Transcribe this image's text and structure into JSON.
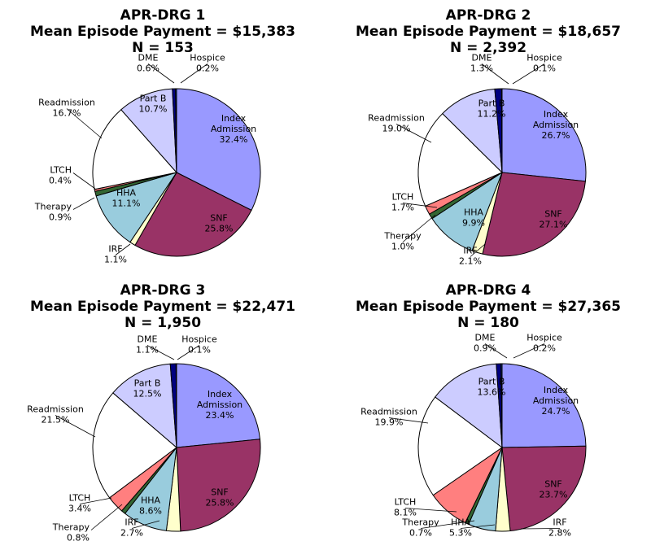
{
  "chart_data": [
    {
      "type": "pie",
      "title_lines": [
        "APR-DRG 1",
        "Mean Episode Payment = $15,383",
        "N = 153"
      ],
      "slices": [
        {
          "label": "Index\nAdmission",
          "pct_text": "32.4%",
          "value": 32.4,
          "color": "#9999ff"
        },
        {
          "label": "SNF",
          "pct_text": "25.8%",
          "value": 25.8,
          "color": "#993366"
        },
        {
          "label": "IRF",
          "pct_text": "1.1%",
          "value": 1.1,
          "color": "#ffffcc"
        },
        {
          "label": "HHA",
          "pct_text": "11.1%",
          "value": 11.1,
          "color": "#99ccdd"
        },
        {
          "label": "Therapy",
          "pct_text": "0.9%",
          "value": 0.9,
          "color": "#336633"
        },
        {
          "label": "LTCH",
          "pct_text": "0.4%",
          "value": 0.4,
          "color": "#ff7f7f"
        },
        {
          "label": "Readmission",
          "pct_text": "16.7%",
          "value": 16.7,
          "color": "#ffffff"
        },
        {
          "label": "Part B",
          "pct_text": "10.7%",
          "value": 10.7,
          "color": "#ccccff"
        },
        {
          "label": "DME",
          "pct_text": "0.6%",
          "value": 0.6,
          "color": "#000080"
        },
        {
          "label": "Hospice",
          "pct_text": "0.2%",
          "value": 0.2,
          "color": "#0066cc"
        }
      ]
    },
    {
      "type": "pie",
      "title_lines": [
        "APR-DRG 2",
        "Mean Episode Payment = $18,657",
        "N = 2,392"
      ],
      "slices": [
        {
          "label": "Index\nAdmission",
          "pct_text": "26.7%",
          "value": 26.7,
          "color": "#9999ff"
        },
        {
          "label": "SNF",
          "pct_text": "27.1%",
          "value": 27.1,
          "color": "#993366"
        },
        {
          "label": "IRF",
          "pct_text": "2.1%",
          "value": 2.1,
          "color": "#ffffcc"
        },
        {
          "label": "HHA",
          "pct_text": "9.9%",
          "value": 9.9,
          "color": "#99ccdd"
        },
        {
          "label": "Therapy",
          "pct_text": "1.0%",
          "value": 1.0,
          "color": "#336633"
        },
        {
          "label": "LTCH",
          "pct_text": "1.7%",
          "value": 1.7,
          "color": "#ff7f7f"
        },
        {
          "label": "Readmission",
          "pct_text": "19.0%",
          "value": 19.0,
          "color": "#ffffff"
        },
        {
          "label": "Part B",
          "pct_text": "11.2%",
          "value": 11.2,
          "color": "#ccccff"
        },
        {
          "label": "DME",
          "pct_text": "1.3%",
          "value": 1.3,
          "color": "#000080"
        },
        {
          "label": "Hospice",
          "pct_text": "0.1%",
          "value": 0.1,
          "color": "#0066cc"
        }
      ]
    },
    {
      "type": "pie",
      "title_lines": [
        "APR-DRG 3",
        "Mean Episode Payment = $22,471",
        "N = 1,950"
      ],
      "slices": [
        {
          "label": "Index\nAdmission",
          "pct_text": "23.4%",
          "value": 23.4,
          "color": "#9999ff"
        },
        {
          "label": "SNF",
          "pct_text": "25.8%",
          "value": 25.8,
          "color": "#993366"
        },
        {
          "label": "IRF",
          "pct_text": "2.7%",
          "value": 2.7,
          "color": "#ffffcc"
        },
        {
          "label": "HHA",
          "pct_text": "8.6%",
          "value": 8.6,
          "color": "#99ccdd"
        },
        {
          "label": "Therapy",
          "pct_text": "0.8%",
          "value": 0.8,
          "color": "#336633"
        },
        {
          "label": "LTCH",
          "pct_text": "3.4%",
          "value": 3.4,
          "color": "#ff7f7f"
        },
        {
          "label": "Readmission",
          "pct_text": "21.5%",
          "value": 21.5,
          "color": "#ffffff"
        },
        {
          "label": "Part B",
          "pct_text": "12.5%",
          "value": 12.5,
          "color": "#ccccff"
        },
        {
          "label": "DME",
          "pct_text": "1.1%",
          "value": 1.1,
          "color": "#000080"
        },
        {
          "label": "Hospice",
          "pct_text": "0.1%",
          "value": 0.1,
          "color": "#0066cc"
        }
      ]
    },
    {
      "type": "pie",
      "title_lines": [
        "APR-DRG 4",
        "Mean Episode Payment = $27,365",
        "N = 180"
      ],
      "slices": [
        {
          "label": "Index\nAdmission",
          "pct_text": "24.7%",
          "value": 24.7,
          "color": "#9999ff"
        },
        {
          "label": "SNF",
          "pct_text": "23.7%",
          "value": 23.7,
          "color": "#993366"
        },
        {
          "label": "IRF",
          "pct_text": "2.8%",
          "value": 2.8,
          "color": "#ffffcc"
        },
        {
          "label": "HHA",
          "pct_text": "5.3%",
          "value": 5.3,
          "color": "#99ccdd"
        },
        {
          "label": "Therapy",
          "pct_text": "0.7%",
          "value": 0.7,
          "color": "#336633"
        },
        {
          "label": "LTCH",
          "pct_text": "8.1%",
          "value": 8.1,
          "color": "#ff7f7f"
        },
        {
          "label": "Readmission",
          "pct_text": "19.9%",
          "value": 19.9,
          "color": "#ffffff"
        },
        {
          "label": "Part B",
          "pct_text": "13.6%",
          "value": 13.6,
          "color": "#ccccff"
        },
        {
          "label": "DME",
          "pct_text": "0.9%",
          "value": 0.9,
          "color": "#000080"
        },
        {
          "label": "Hospice",
          "pct_text": "0.2%",
          "value": 0.2,
          "color": "#0066cc"
        }
      ]
    }
  ]
}
